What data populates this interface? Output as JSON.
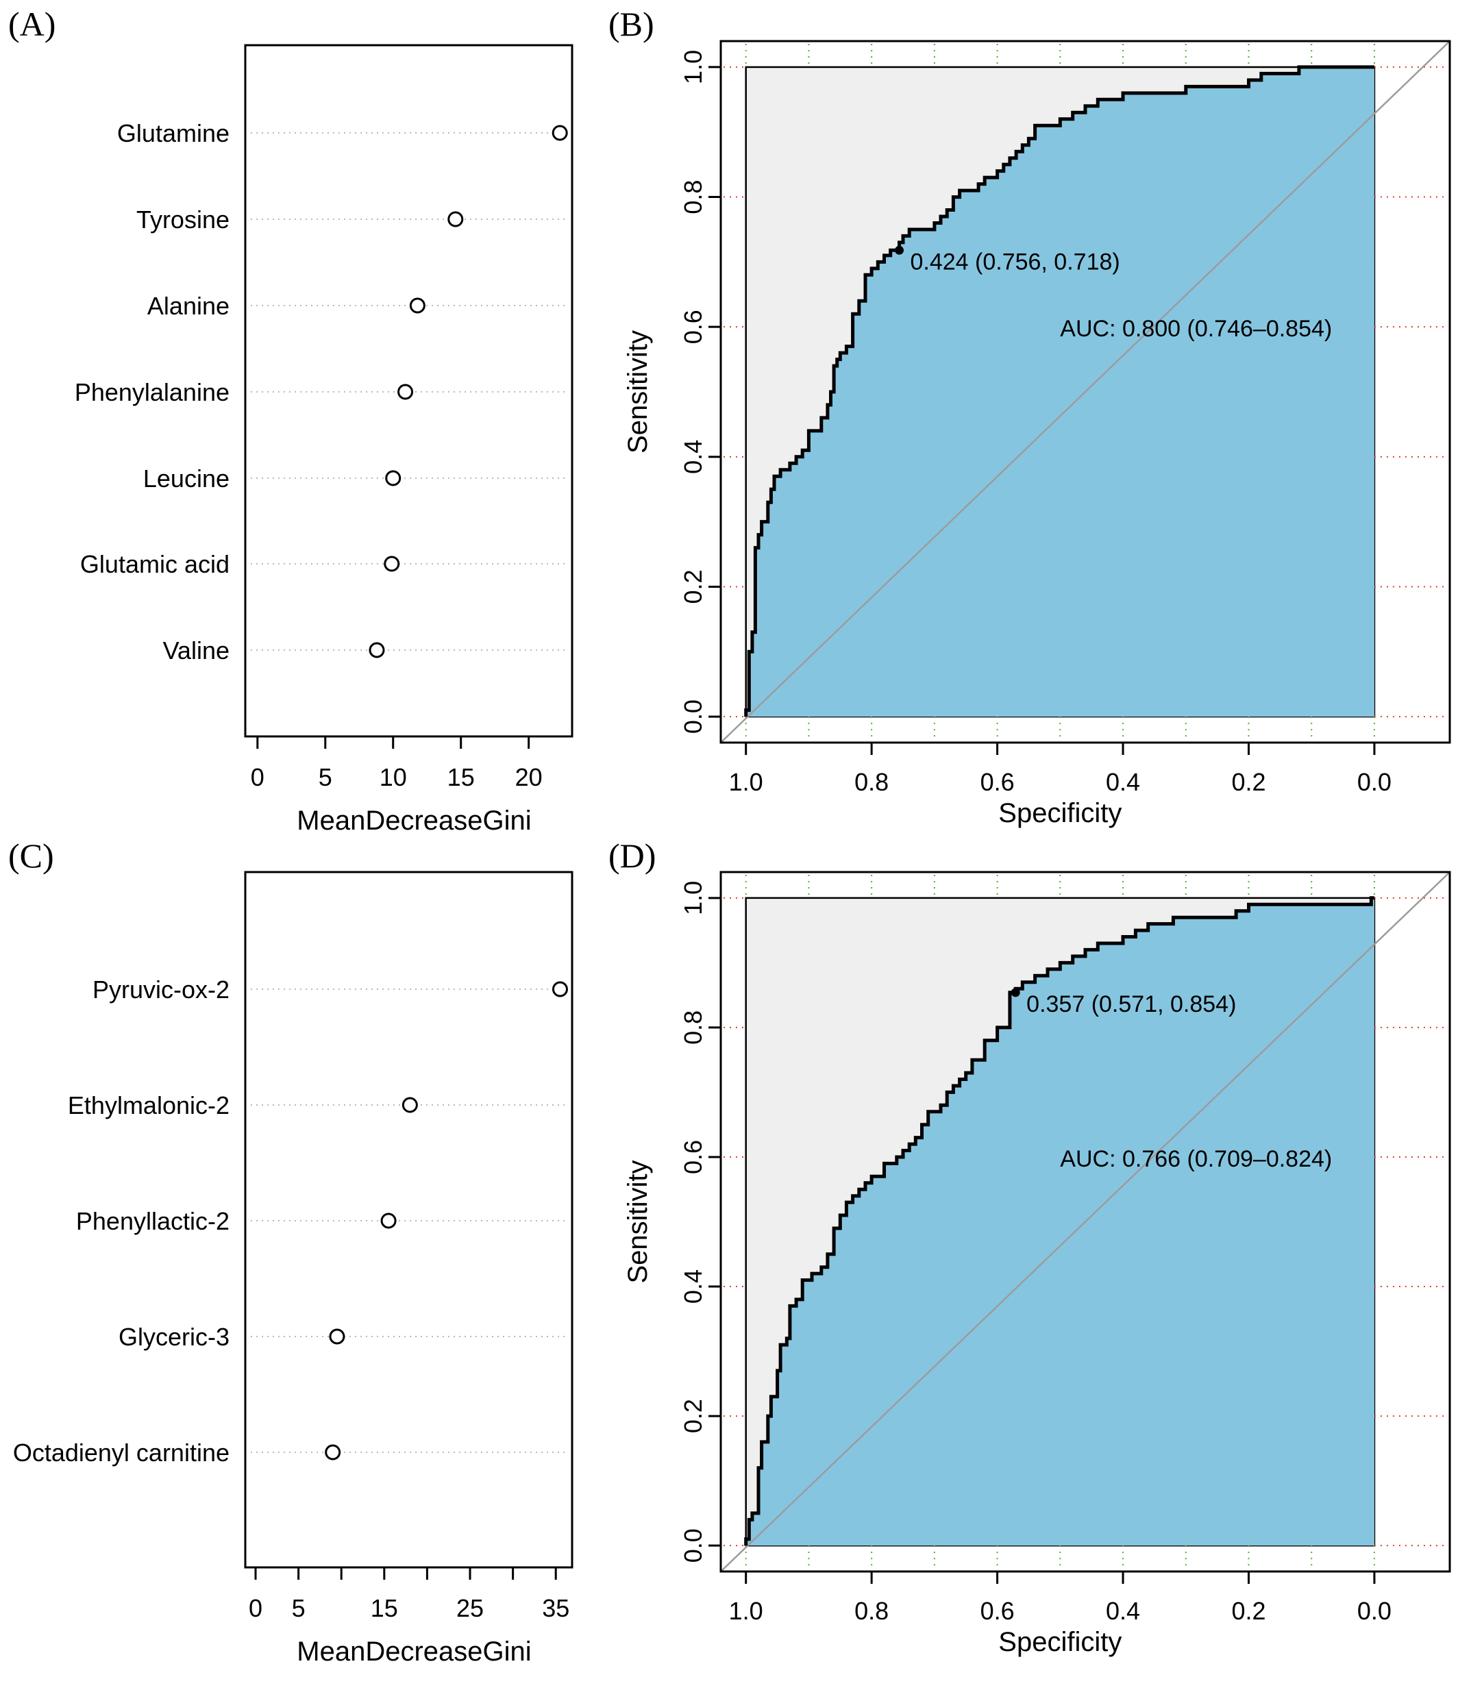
{
  "figure": {
    "panels": [
      "(A)",
      "(B)",
      "(C)",
      "(D)"
    ]
  },
  "chart_data": [
    {
      "id": "A",
      "type": "scatter",
      "orientation": "dotchart",
      "categories": [
        "Glutamine",
        "Tyrosine",
        "Alanine",
        "Phenylalanine",
        "Leucine",
        "Glutamic acid",
        "Valine"
      ],
      "values": [
        22.3,
        14.6,
        11.8,
        10.9,
        10.0,
        9.9,
        8.8
      ],
      "xlabel": "MeanDecreaseGini",
      "xticks": [
        0,
        5,
        10,
        15,
        20
      ],
      "xticklabels": [
        "0",
        "5",
        "10",
        "15",
        "20"
      ],
      "xlim": [
        -0.9,
        23.2
      ],
      "grid": "dotted horizontal guide lines"
    },
    {
      "id": "B",
      "type": "line",
      "kind": "ROC",
      "xlabel": "Specificity",
      "ylabel": "Sensitivity",
      "xticks": [
        1.0,
        0.8,
        0.6,
        0.4,
        0.2,
        0.0
      ],
      "xticklabels": [
        "1.0",
        "0.8",
        "0.6",
        "0.4",
        "0.2",
        "0.0"
      ],
      "yticks": [
        0.0,
        0.2,
        0.4,
        0.6,
        0.8,
        1.0
      ],
      "yticklabels": [
        "0.0",
        "0.2",
        "0.4",
        "0.6",
        "0.8",
        "1.0"
      ],
      "xlim": [
        1.04,
        -0.12
      ],
      "ylim": [
        -0.04,
        1.04
      ],
      "reversed_x": true,
      "grid": "dotted",
      "best_threshold": {
        "specificity": 0.756,
        "sensitivity": 0.718,
        "label": "0.424 (0.756, 0.718)"
      },
      "auc_label": "AUC: 0.800 (0.746–0.854)",
      "series": [
        {
          "specificity": [
            1.0,
            0.995,
            0.99,
            0.985,
            0.98,
            0.975,
            0.965,
            0.96,
            0.955,
            0.945,
            0.93,
            0.92,
            0.91,
            0.9,
            0.88,
            0.87,
            0.865,
            0.86,
            0.855,
            0.85,
            0.84,
            0.83,
            0.82,
            0.81,
            0.8,
            0.79,
            0.78,
            0.77,
            0.756,
            0.75,
            0.74,
            0.73,
            0.72,
            0.7,
            0.69,
            0.68,
            0.67,
            0.66,
            0.65,
            0.64,
            0.63,
            0.62,
            0.6,
            0.59,
            0.58,
            0.57,
            0.56,
            0.55,
            0.54,
            0.52,
            0.5,
            0.48,
            0.46,
            0.44,
            0.42,
            0.4,
            0.38,
            0.35,
            0.32,
            0.3,
            0.2,
            0.18,
            0.16,
            0.12,
            0.08,
            0.05,
            0.02,
            0.0
          ],
          "sensitivity": [
            0.0,
            0.01,
            0.1,
            0.13,
            0.26,
            0.28,
            0.3,
            0.33,
            0.35,
            0.37,
            0.38,
            0.39,
            0.4,
            0.41,
            0.44,
            0.46,
            0.48,
            0.5,
            0.54,
            0.55,
            0.56,
            0.57,
            0.62,
            0.64,
            0.68,
            0.69,
            0.7,
            0.71,
            0.718,
            0.73,
            0.74,
            0.75,
            0.75,
            0.75,
            0.76,
            0.77,
            0.78,
            0.8,
            0.81,
            0.81,
            0.81,
            0.82,
            0.83,
            0.84,
            0.85,
            0.86,
            0.87,
            0.88,
            0.89,
            0.91,
            0.91,
            0.92,
            0.93,
            0.94,
            0.95,
            0.95,
            0.96,
            0.96,
            0.96,
            0.96,
            0.97,
            0.98,
            0.99,
            0.99,
            1.0,
            1.0,
            1.0,
            1.0
          ]
        }
      ]
    },
    {
      "id": "C",
      "type": "scatter",
      "orientation": "dotchart",
      "categories": [
        "Pyruvic-ox-2",
        "Ethylmalonic-2",
        "Phenyllactic-2",
        "Glyceric-3",
        "Octadienyl carnitine"
      ],
      "values": [
        35.5,
        18.0,
        15.5,
        9.5,
        9.0
      ],
      "xlabel": "MeanDecreaseGini",
      "xticks": [
        0,
        5,
        10,
        15,
        20,
        25,
        30,
        35
      ],
      "xticklabels": [
        "0",
        "5",
        "",
        "15",
        "",
        "25",
        "",
        "35"
      ],
      "xlim": [
        -1.2,
        36.9
      ],
      "grid": "dotted horizontal guide lines"
    },
    {
      "id": "D",
      "type": "line",
      "kind": "ROC",
      "xlabel": "Specificity",
      "ylabel": "Sensitivity",
      "xticks": [
        1.0,
        0.8,
        0.6,
        0.4,
        0.2,
        0.0
      ],
      "xticklabels": [
        "1.0",
        "0.8",
        "0.6",
        "0.4",
        "0.2",
        "0.0"
      ],
      "yticks": [
        0.0,
        0.2,
        0.4,
        0.6,
        0.8,
        1.0
      ],
      "yticklabels": [
        "0.0",
        "0.2",
        "0.4",
        "0.6",
        "0.8",
        "1.0"
      ],
      "xlim": [
        1.04,
        -0.12
      ],
      "ylim": [
        -0.04,
        1.04
      ],
      "reversed_x": true,
      "grid": "dotted",
      "best_threshold": {
        "specificity": 0.571,
        "sensitivity": 0.854,
        "label": "0.357 (0.571, 0.854)"
      },
      "auc_label": "AUC: 0.766 (0.709–0.824)",
      "series": [
        {
          "specificity": [
            1.0,
            0.995,
            0.99,
            0.98,
            0.975,
            0.965,
            0.96,
            0.95,
            0.945,
            0.935,
            0.93,
            0.92,
            0.91,
            0.895,
            0.88,
            0.87,
            0.86,
            0.85,
            0.84,
            0.83,
            0.82,
            0.81,
            0.8,
            0.79,
            0.78,
            0.76,
            0.75,
            0.74,
            0.73,
            0.72,
            0.71,
            0.69,
            0.68,
            0.67,
            0.66,
            0.65,
            0.64,
            0.62,
            0.6,
            0.58,
            0.571,
            0.56,
            0.54,
            0.52,
            0.5,
            0.48,
            0.46,
            0.44,
            0.4,
            0.38,
            0.36,
            0.32,
            0.3,
            0.24,
            0.22,
            0.2,
            0.18,
            0.1,
            0.005,
            0.0
          ],
          "sensitivity": [
            0.0,
            0.01,
            0.04,
            0.05,
            0.12,
            0.16,
            0.2,
            0.23,
            0.27,
            0.31,
            0.32,
            0.37,
            0.38,
            0.41,
            0.42,
            0.43,
            0.45,
            0.49,
            0.51,
            0.53,
            0.54,
            0.55,
            0.56,
            0.57,
            0.57,
            0.59,
            0.6,
            0.61,
            0.62,
            0.63,
            0.65,
            0.67,
            0.68,
            0.7,
            0.71,
            0.72,
            0.73,
            0.75,
            0.78,
            0.8,
            0.854,
            0.86,
            0.87,
            0.88,
            0.89,
            0.9,
            0.91,
            0.92,
            0.93,
            0.94,
            0.95,
            0.96,
            0.97,
            0.97,
            0.97,
            0.98,
            0.99,
            0.99,
            0.99,
            1.0
          ]
        }
      ]
    }
  ]
}
